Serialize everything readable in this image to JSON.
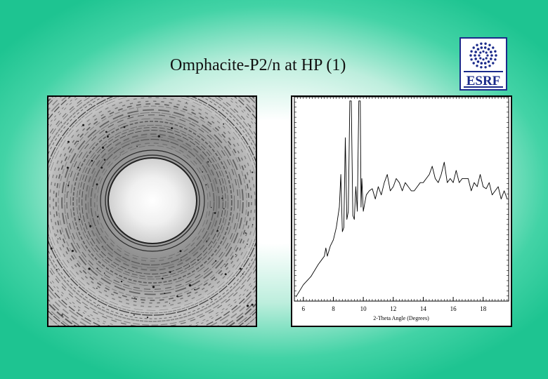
{
  "slide": {
    "title": "Omphacite-P2/n at HP (1)"
  },
  "logo": {
    "text": "ESRF",
    "color": "#1a2a8a"
  },
  "diffraction_image": {
    "icon": "powder-diffraction-pattern"
  },
  "chart_data": {
    "type": "line",
    "title": "",
    "xlabel": "2-Theta Angle (Degrees)",
    "ylabel": "",
    "xlim": [
      5.4,
      19.7
    ],
    "ylim": [
      0,
      1.0
    ],
    "xticks": [
      6,
      8,
      10,
      12,
      14,
      16,
      18
    ],
    "grid": false,
    "series": [
      {
        "x": [
          5.5,
          6.0,
          6.5,
          7.0,
          7.2,
          7.4,
          7.5,
          7.6,
          7.8,
          8.0,
          8.2,
          8.4,
          8.5,
          8.6,
          8.7,
          8.8,
          8.9,
          9.0,
          9.1,
          9.2,
          9.3,
          9.4,
          9.5,
          9.6,
          9.7,
          9.8,
          9.85,
          9.9,
          10.0,
          10.1,
          10.2,
          10.4,
          10.6,
          10.8,
          11.0,
          11.2,
          11.4,
          11.6,
          11.8,
          12.0,
          12.2,
          12.4,
          12.6,
          12.8,
          13.0,
          13.2,
          13.4,
          13.6,
          13.8,
          14.0,
          14.2,
          14.4,
          14.6,
          14.8,
          15.0,
          15.2,
          15.4,
          15.6,
          15.8,
          16.0,
          16.2,
          16.4,
          16.6,
          16.8,
          17.0,
          17.2,
          17.4,
          17.6,
          17.8,
          18.0,
          18.2,
          18.4,
          18.6,
          18.8,
          19.0,
          19.2,
          19.4,
          19.6
        ],
        "y": [
          0.02,
          0.08,
          0.12,
          0.18,
          0.2,
          0.22,
          0.26,
          0.22,
          0.27,
          0.3,
          0.36,
          0.46,
          0.62,
          0.34,
          0.36,
          0.8,
          0.4,
          0.44,
          0.98,
          0.98,
          0.42,
          0.4,
          0.56,
          0.44,
          0.98,
          0.98,
          0.46,
          0.6,
          0.44,
          0.48,
          0.52,
          0.54,
          0.55,
          0.5,
          0.56,
          0.52,
          0.58,
          0.62,
          0.54,
          0.56,
          0.6,
          0.58,
          0.54,
          0.58,
          0.56,
          0.54,
          0.54,
          0.56,
          0.58,
          0.58,
          0.6,
          0.62,
          0.66,
          0.6,
          0.58,
          0.62,
          0.68,
          0.58,
          0.6,
          0.58,
          0.64,
          0.58,
          0.6,
          0.6,
          0.6,
          0.54,
          0.58,
          0.56,
          0.62,
          0.56,
          0.55,
          0.58,
          0.52,
          0.54,
          0.56,
          0.5,
          0.54,
          0.5
        ]
      }
    ]
  }
}
